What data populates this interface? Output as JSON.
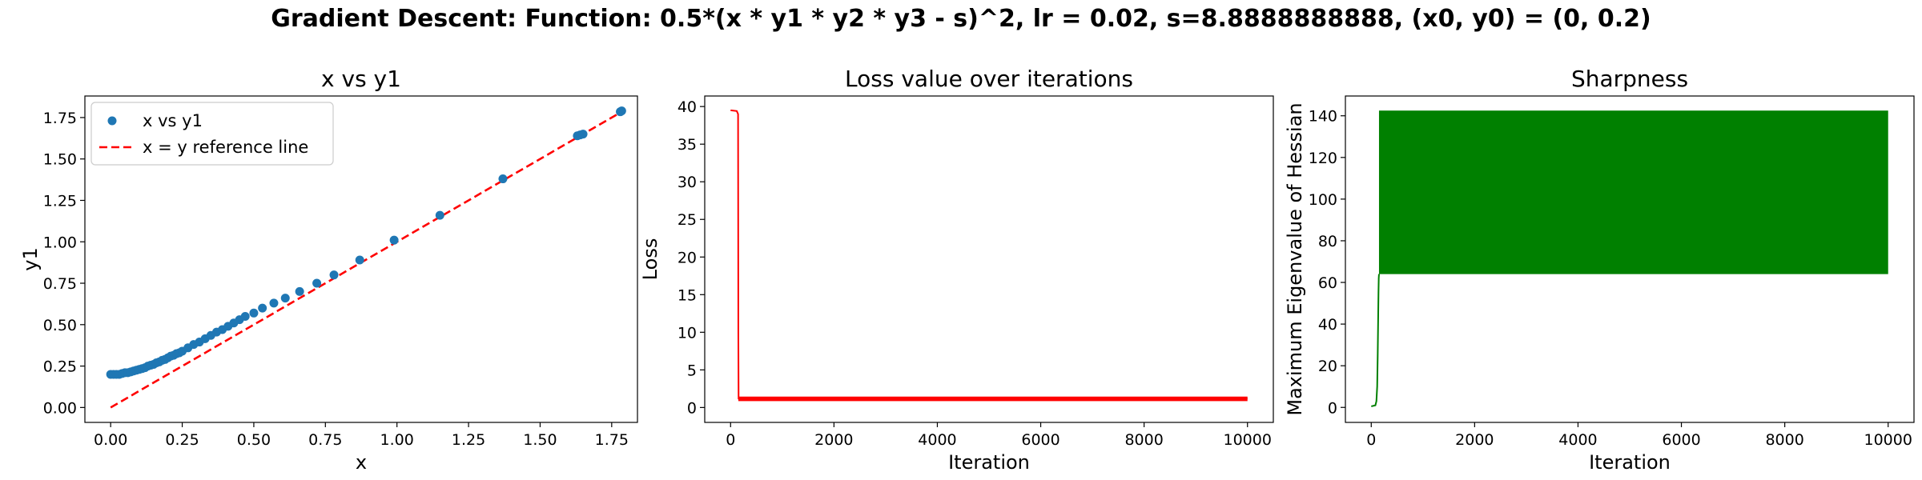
{
  "figure": {
    "suptitle": "Gradient Descent: Function: 0.5*(x * y1 * y2 * y3 - s)^2, lr = 0.02, s=8.8888888888, (x0, y0) = (0, 0.2)"
  },
  "colors": {
    "scatter": "#1f77b4",
    "reference_line": "#ff0000",
    "loss_line": "#ff0000",
    "sharpness_fill": "#008000"
  },
  "chart_data": [
    {
      "type": "scatter",
      "title": "x vs y1",
      "xlabel": "x",
      "ylabel": "y1",
      "xlim": [
        -0.09,
        1.84
      ],
      "ylim": [
        -0.09,
        1.88
      ],
      "xticks": [
        "0.00",
        "0.25",
        "0.50",
        "0.75",
        "1.00",
        "1.25",
        "1.50",
        "1.75"
      ],
      "yticks": [
        "0.00",
        "0.25",
        "0.50",
        "0.75",
        "1.00",
        "1.25",
        "1.50",
        "1.75"
      ],
      "legend": {
        "position": "top-left",
        "entries": [
          "x vs y1",
          "x = y reference line"
        ]
      },
      "series": [
        {
          "name": "x vs y1",
          "marker": "circle",
          "x": [
            0.0,
            0.01,
            0.02,
            0.03,
            0.04,
            0.05,
            0.06,
            0.07,
            0.08,
            0.09,
            0.1,
            0.11,
            0.12,
            0.13,
            0.14,
            0.15,
            0.16,
            0.17,
            0.18,
            0.19,
            0.2,
            0.21,
            0.22,
            0.23,
            0.24,
            0.25,
            0.27,
            0.29,
            0.31,
            0.33,
            0.35,
            0.37,
            0.39,
            0.41,
            0.43,
            0.45,
            0.47,
            0.5,
            0.53,
            0.57,
            0.61,
            0.66,
            0.72,
            0.78,
            0.87,
            0.99,
            1.15,
            1.37,
            1.63,
            1.64,
            1.65,
            1.78,
            1.785
          ],
          "y": [
            0.2,
            0.2,
            0.2,
            0.2,
            0.205,
            0.21,
            0.21,
            0.215,
            0.22,
            0.225,
            0.23,
            0.235,
            0.24,
            0.25,
            0.255,
            0.26,
            0.27,
            0.275,
            0.285,
            0.29,
            0.3,
            0.31,
            0.315,
            0.325,
            0.33,
            0.34,
            0.36,
            0.38,
            0.395,
            0.415,
            0.435,
            0.455,
            0.47,
            0.49,
            0.51,
            0.53,
            0.55,
            0.57,
            0.6,
            0.63,
            0.66,
            0.7,
            0.75,
            0.8,
            0.89,
            1.01,
            1.16,
            1.38,
            1.64,
            1.645,
            1.65,
            1.785,
            1.79
          ]
        },
        {
          "name": "x = y reference line",
          "style": "dashed",
          "x": [
            0.0,
            1.79
          ],
          "y": [
            0.0,
            1.79
          ]
        }
      ]
    },
    {
      "type": "line",
      "title": "Loss value over iterations",
      "xlabel": "Iteration",
      "ylabel": "Loss",
      "xlim": [
        -500,
        10500
      ],
      "ylim": [
        -1.98,
        41.4
      ],
      "xticks": [
        "0",
        "2000",
        "4000",
        "6000",
        "8000",
        "10000"
      ],
      "yticks": [
        "0",
        "5",
        "10",
        "15",
        "20",
        "25",
        "30",
        "35",
        "40"
      ],
      "series": [
        {
          "name": "",
          "x": [
            0,
            120,
            145,
            150,
            155,
            160,
            10000
          ],
          "y": [
            39.5,
            39.4,
            39.0,
            10.0,
            1.2,
            1.2,
            1.2
          ],
          "oscillation_band": {
            "x_start": 150,
            "x_end": 10000,
            "y_low": 0.85,
            "y_high": 1.45
          }
        }
      ]
    },
    {
      "type": "area",
      "title": "Sharpness",
      "xlabel": "Iteration",
      "ylabel": "Maximum Eigenvalue of Hessian",
      "xlim": [
        -500,
        10500
      ],
      "ylim": [
        -7.2,
        149.5
      ],
      "xticks": [
        "0",
        "2000",
        "4000",
        "6000",
        "8000",
        "10000"
      ],
      "yticks": [
        "0",
        "20",
        "40",
        "60",
        "80",
        "100",
        "120",
        "140"
      ],
      "series": [
        {
          "name": "",
          "x": [
            0,
            80,
            100,
            115,
            125,
            135,
            140,
            145,
            150
          ],
          "y": [
            0.5,
            1.0,
            3.0,
            10.0,
            25.0,
            45.0,
            55.0,
            62.0,
            64.0
          ],
          "oscillation_band": {
            "x_start": 150,
            "x_end": 10000,
            "y_low": 64.0,
            "y_high": 142.5
          }
        }
      ]
    }
  ]
}
